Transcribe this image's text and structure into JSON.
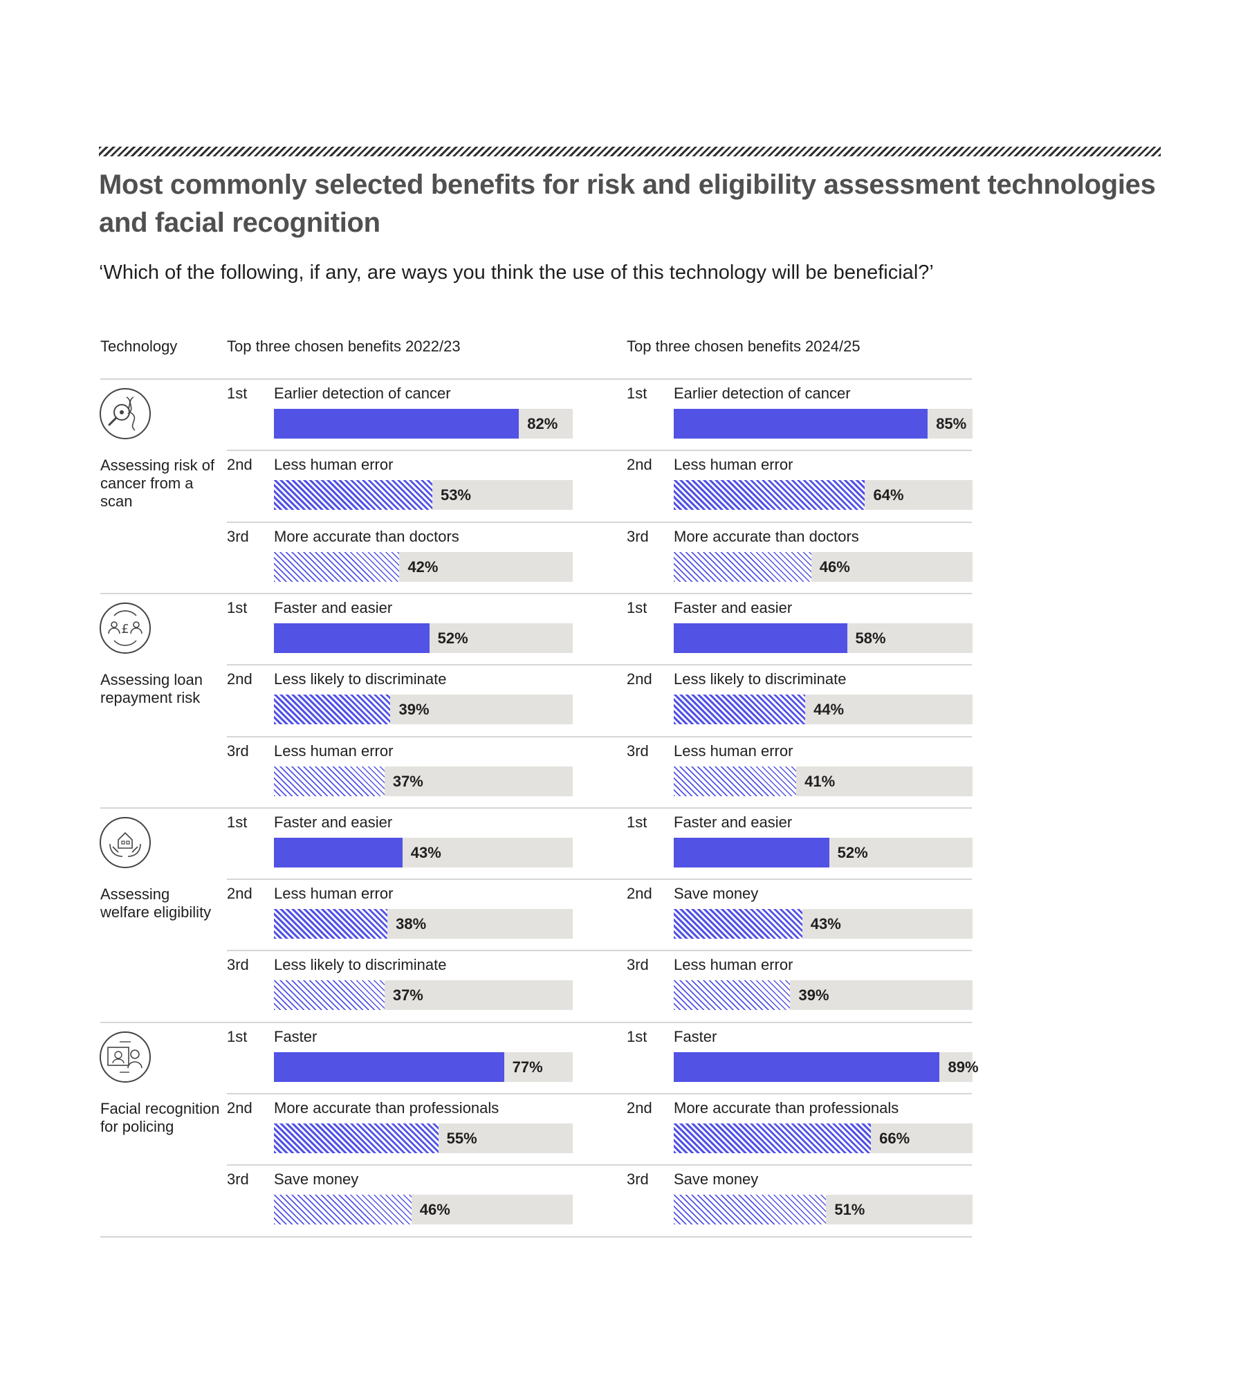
{
  "title": "Most commonly selected benefits for risk and eligibility assessment technologies and facial recognition",
  "subtitle": "‘Which of the following, if any, are ways you think the use of this technology will be beneficial?’",
  "headers": {
    "technology": "Technology",
    "col2022": "Top three chosen benefits 2022/23",
    "col2024": "Top three chosen benefits 2024/25"
  },
  "colors": {
    "accent": "#5252e5",
    "track": "#e4e2de",
    "title": "#505050"
  },
  "chart_data": {
    "type": "bar",
    "scale": [
      0,
      100
    ],
    "unit": "%",
    "technologies": [
      {
        "name": "Assessing risk of cancer from a scan",
        "icon": "cancer-scan-icon",
        "y2022": [
          {
            "rank": "1st",
            "benefit": "Earlier detection of cancer",
            "value": 82,
            "label": "82%"
          },
          {
            "rank": "2nd",
            "benefit": "Less human error",
            "value": 53,
            "label": "53%"
          },
          {
            "rank": "3rd",
            "benefit": "More accurate than doctors",
            "value": 42,
            "label": "42%"
          }
        ],
        "y2024": [
          {
            "rank": "1st",
            "benefit": "Earlier detection of cancer",
            "value": 85,
            "label": "85%"
          },
          {
            "rank": "2nd",
            "benefit": "Less human error",
            "value": 64,
            "label": "64%"
          },
          {
            "rank": "3rd",
            "benefit": "More accurate than doctors",
            "value": 46,
            "label": "46%"
          }
        ]
      },
      {
        "name": "Assessing loan repayment risk",
        "icon": "loan-risk-icon",
        "y2022": [
          {
            "rank": "1st",
            "benefit": "Faster and easier",
            "value": 52,
            "label": "52%"
          },
          {
            "rank": "2nd",
            "benefit": "Less likely to discriminate",
            "value": 39,
            "label": "39%"
          },
          {
            "rank": "3rd",
            "benefit": "Less human error",
            "value": 37,
            "label": "37%"
          }
        ],
        "y2024": [
          {
            "rank": "1st",
            "benefit": "Faster and easier",
            "value": 58,
            "label": "58%"
          },
          {
            "rank": "2nd",
            "benefit": "Less likely to discriminate",
            "value": 44,
            "label": "44%"
          },
          {
            "rank": "3rd",
            "benefit": "Less human error",
            "value": 41,
            "label": "41%"
          }
        ]
      },
      {
        "name": "Assessing welfare eligibility",
        "icon": "welfare-eligibility-icon",
        "y2022": [
          {
            "rank": "1st",
            "benefit": "Faster and easier",
            "value": 43,
            "label": "43%"
          },
          {
            "rank": "2nd",
            "benefit": "Less human error",
            "value": 38,
            "label": "38%"
          },
          {
            "rank": "3rd",
            "benefit": "Less likely to discriminate",
            "value": 37,
            "label": "37%"
          }
        ],
        "y2024": [
          {
            "rank": "1st",
            "benefit": "Faster and easier",
            "value": 52,
            "label": "52%"
          },
          {
            "rank": "2nd",
            "benefit": "Save money",
            "value": 43,
            "label": "43%"
          },
          {
            "rank": "3rd",
            "benefit": "Less human error",
            "value": 39,
            "label": "39%"
          }
        ]
      },
      {
        "name": "Facial recognition for policing",
        "icon": "facial-recognition-icon",
        "y2022": [
          {
            "rank": "1st",
            "benefit": "Faster",
            "value": 77,
            "label": "77%"
          },
          {
            "rank": "2nd",
            "benefit": "More accurate than professionals",
            "value": 55,
            "label": "55%"
          },
          {
            "rank": "3rd",
            "benefit": "Save money",
            "value": 46,
            "label": "46%"
          }
        ],
        "y2024": [
          {
            "rank": "1st",
            "benefit": "Faster",
            "value": 89,
            "label": "89%"
          },
          {
            "rank": "2nd",
            "benefit": "More accurate than professionals",
            "value": 66,
            "label": "66%"
          },
          {
            "rank": "3rd",
            "benefit": "Save money",
            "value": 51,
            "label": "51%"
          }
        ]
      }
    ]
  }
}
